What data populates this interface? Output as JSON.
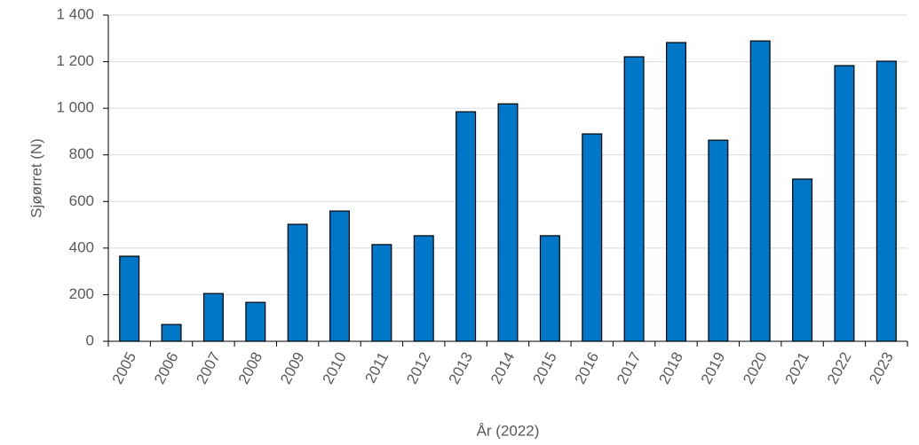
{
  "chart_data": {
    "type": "bar",
    "categories": [
      "2005",
      "2006",
      "2007",
      "2008",
      "2009",
      "2010",
      "2011",
      "2012",
      "2013",
      "2014",
      "2015",
      "2016",
      "2017",
      "2018",
      "2019",
      "2020",
      "2021",
      "2022",
      "2023"
    ],
    "values": [
      365,
      72,
      205,
      167,
      502,
      559,
      415,
      453,
      985,
      1019,
      453,
      890,
      1221,
      1282,
      863,
      1289,
      696,
      1183,
      1202
    ],
    "color": "#0077c8",
    "ylim": [
      0,
      1400
    ],
    "yticks": [
      0,
      200,
      400,
      600,
      800,
      {
        "value": 1000,
        "label": "1 000"
      },
      {
        "value": 1200,
        "label": "1 200"
      },
      {
        "value": 1400,
        "label": "1 400"
      }
    ],
    "grid": true,
    "ylabel": "Sjøørret (N)",
    "xlabel": "År (2022)"
  }
}
